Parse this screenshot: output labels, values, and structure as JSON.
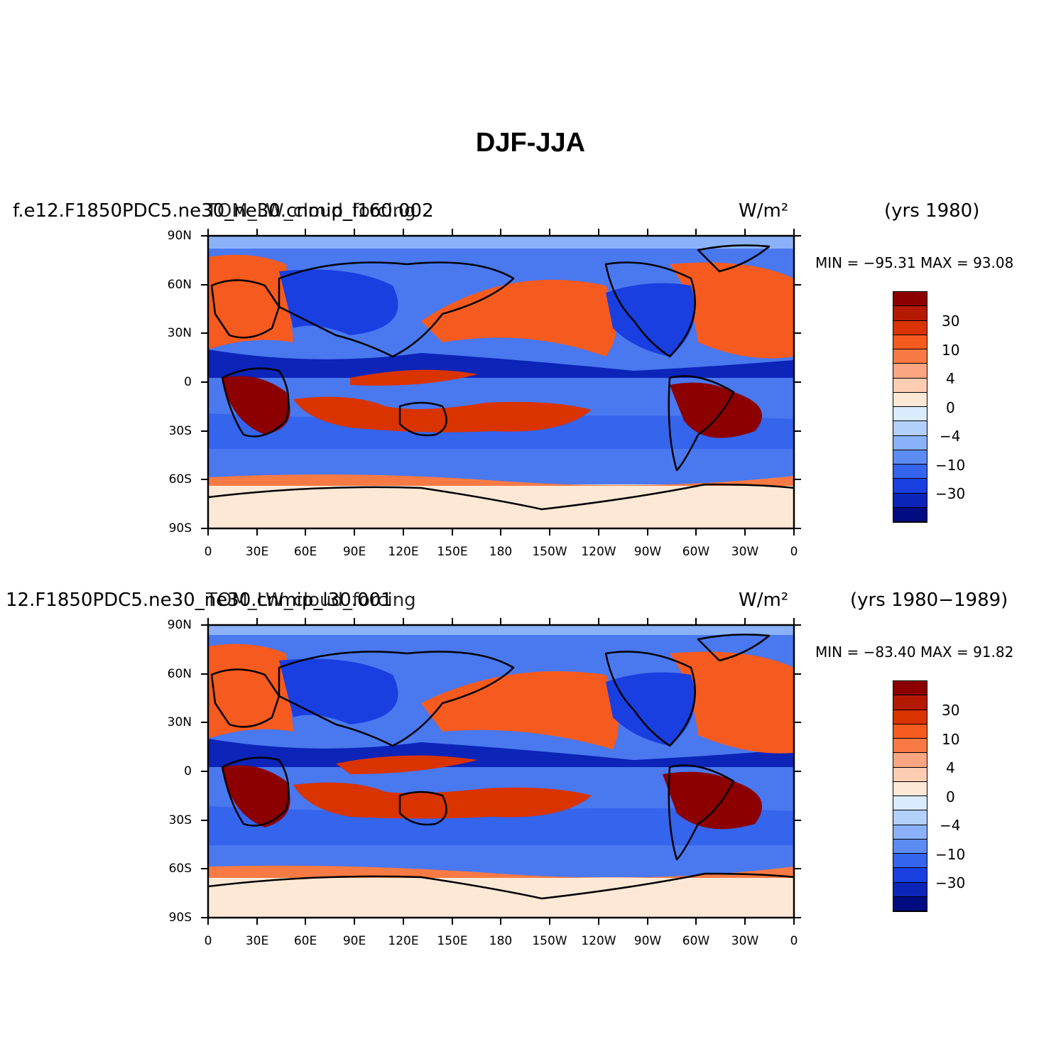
{
  "title": "DJF-JJA",
  "panels": [
    {
      "left_label": "f.e12.F1850PDC5.ne30_ne30.cnmip_l160.002",
      "center_label": "TOM_LW_cloud_forcing",
      "units": "W/m²",
      "years": "(yrs 1980)",
      "stats": "MIN = −95.31  MAX =  93.08"
    },
    {
      "left_label": "12.F1850PDC5.ne30_ne30.cnmip_l30.001",
      "center_label": "TOM_LW_cloud_forcing",
      "units": "W/m²",
      "years": "(yrs 1980−1989)",
      "stats": "MIN = −83.40  MAX =  91.82"
    }
  ],
  "lat_ticks": [
    "90N",
    "60N",
    "30N",
    "0",
    "30S",
    "60S",
    "90S"
  ],
  "lon_ticks": [
    "0",
    "30E",
    "60E",
    "90E",
    "120E",
    "150E",
    "180",
    "150W",
    "120W",
    "90W",
    "60W",
    "30W",
    "0"
  ],
  "colorbar": {
    "labels": [
      "30",
      "10",
      "4",
      "0",
      "−4",
      "−10",
      "−30"
    ],
    "colors": [
      "#8c0000",
      "#b31a00",
      "#d93300",
      "#f55a1f",
      "#f77a45",
      "#fba582",
      "#fccdb3",
      "#fde8d6",
      "#d9ebfd",
      "#b3d0fb",
      "#8bb2f8",
      "#5c8cf2",
      "#3564ed",
      "#1a3fe0",
      "#0c24b8",
      "#000c80"
    ]
  }
}
